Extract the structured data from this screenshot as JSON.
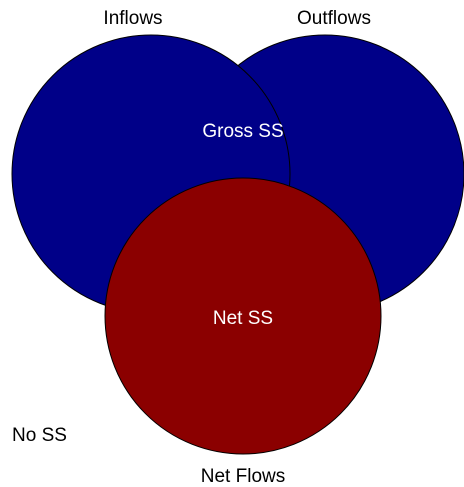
{
  "diagram": {
    "type": "venn",
    "sets": {
      "inflows": {
        "label": "Inflows",
        "color": "#000088"
      },
      "outflows": {
        "label": "Outflows",
        "color": "#000088"
      },
      "net_flows": {
        "label": "Net Flows",
        "color": "#8b0000"
      }
    },
    "regions": {
      "gross_ss": {
        "label": "Gross SS"
      },
      "net_ss": {
        "label": "Net SS"
      },
      "no_ss": {
        "label": "No SS"
      }
    },
    "outline_color": "#000000"
  }
}
